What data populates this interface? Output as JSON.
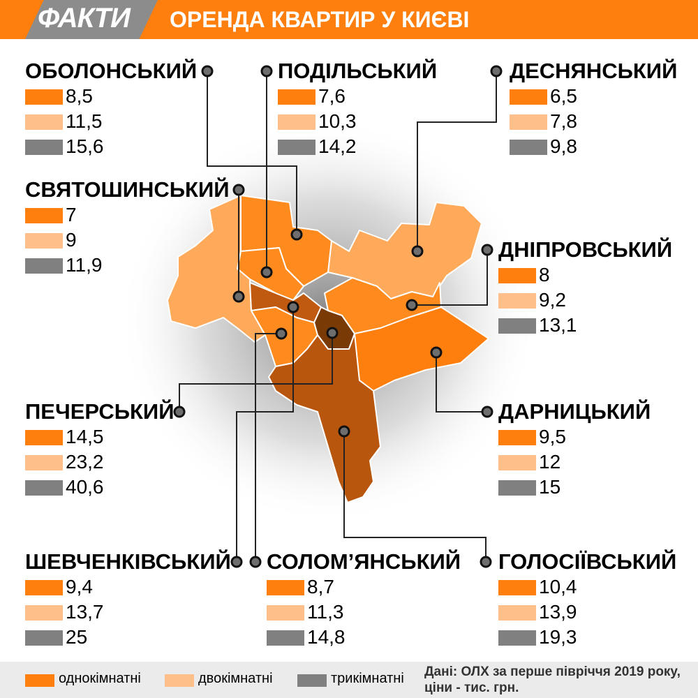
{
  "brand": "ФАКТИ",
  "title": "ОРЕНДА КВАРТИР У КИЄВІ",
  "colors": {
    "one_room": "#ff7f0e",
    "two_room": "#ffbf8a",
    "three_room": "#808080"
  },
  "districts": [
    {
      "name": "ОБОЛОНСЬКИЙ",
      "one": "8,5",
      "two": "11,5",
      "three": "15,6"
    },
    {
      "name": "ПОДІЛЬСЬКИЙ",
      "one": "7,6",
      "two": "10,3",
      "three": "14,2"
    },
    {
      "name": "ДЕСНЯНСЬКИЙ",
      "one": "6,5",
      "two": "7,8",
      "three": "9,8"
    },
    {
      "name": "СВЯТОШИНСЬКИЙ",
      "one": "7",
      "two": "9",
      "three": "11,9"
    },
    {
      "name": "ДНІПРОВСЬКИЙ",
      "one": "8",
      "two": "9,2",
      "three": "13,1"
    },
    {
      "name": "ПЕЧЕРСЬКИЙ",
      "one": "14,5",
      "two": "23,2",
      "three": "40,6"
    },
    {
      "name": "ДАРНИЦЬКИЙ",
      "one": "9,5",
      "two": "12",
      "three": "15"
    },
    {
      "name": "ШЕВЧЕНКІВСЬКИЙ",
      "one": "9,4",
      "two": "13,7",
      "three": "25"
    },
    {
      "name": "СОЛОМ’ЯНСЬКИЙ",
      "one": "8,7",
      "two": "11,3",
      "three": "14,8"
    },
    {
      "name": "ГОЛОСІЇВСЬКИЙ",
      "one": "10,4",
      "two": "13,9",
      "three": "19,3"
    }
  ],
  "legend": {
    "one_room": "однокімнатні",
    "two_room": "двокімнатні",
    "three_room": "трикімнатні"
  },
  "source": {
    "line1": "Дані: ОЛХ за перше півріччя 2019 року,",
    "line2": "ціни - тис. грн."
  }
}
